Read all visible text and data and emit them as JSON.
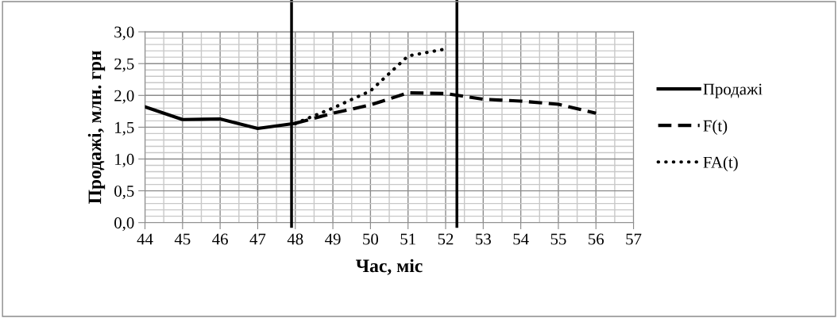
{
  "chart_data": {
    "type": "line",
    "xlabel": "Час, міс",
    "ylabel": "Продажі, млн. грн",
    "xlim": [
      44,
      57
    ],
    "xticks": [
      44,
      45,
      46,
      47,
      48,
      49,
      50,
      51,
      52,
      53,
      54,
      55,
      56,
      57
    ],
    "ylim": [
      0,
      3
    ],
    "yticks": [
      {
        "value": 0,
        "label": "0,0"
      },
      {
        "value": 0.5,
        "label": "0,5"
      },
      {
        "value": 1,
        "label": "1,0"
      },
      {
        "value": 1.5,
        "label": "1,5"
      },
      {
        "value": 2,
        "label": "2,0"
      },
      {
        "value": 2.5,
        "label": "2,5"
      },
      {
        "value": 3,
        "label": "3,0"
      }
    ],
    "grid": true,
    "legend": "right",
    "marker": "none",
    "ref_lines": [
      {
        "axis": "x",
        "value": 47.9,
        "color": "#000000"
      },
      {
        "axis": "x",
        "value": 52.3,
        "color": "#000000"
      }
    ],
    "series": [
      {
        "name": "Продажі",
        "color": "#000000",
        "line_style": "solid",
        "x": [
          44,
          45,
          46,
          47,
          48
        ],
        "values": [
          1.82,
          1.62,
          1.63,
          1.48,
          1.56
        ]
      },
      {
        "name": "F(t)",
        "color": "#000000",
        "line_style": "dashed",
        "x": [
          48,
          49,
          50,
          51,
          52,
          53,
          54,
          55,
          56
        ],
        "values": [
          1.56,
          1.72,
          1.85,
          2.04,
          2.03,
          1.94,
          1.91,
          1.86,
          1.72
        ]
      },
      {
        "name": "FA(t)",
        "color": "#000000",
        "line_style": "dotted",
        "x": [
          48,
          49,
          50,
          51,
          52
        ],
        "values": [
          1.56,
          1.8,
          2.07,
          2.62,
          2.73
        ]
      }
    ]
  }
}
